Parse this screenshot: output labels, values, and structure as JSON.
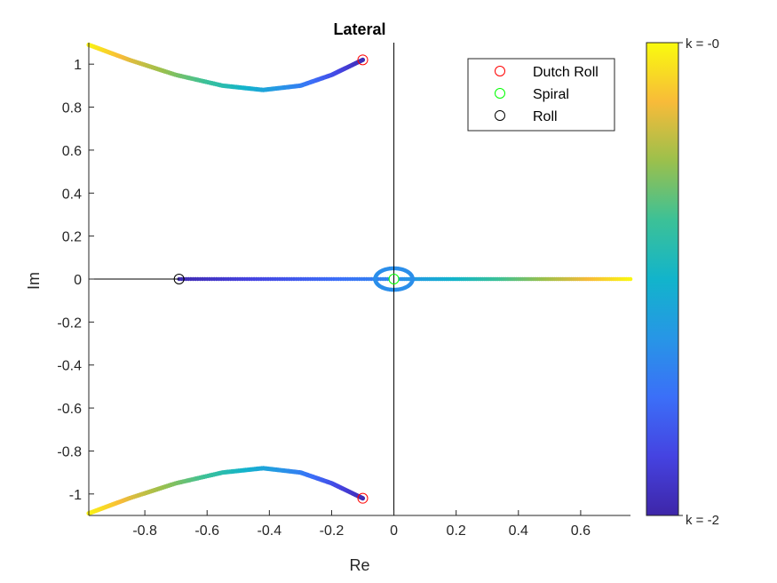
{
  "chart_data": {
    "type": "scatter",
    "title": "Lateral",
    "xlabel": "Re",
    "ylabel": "Im",
    "xlim": [
      -0.98,
      0.76
    ],
    "ylim": [
      -1.1,
      1.1
    ],
    "xticks": [
      -0.8,
      -0.6,
      -0.4,
      -0.2,
      0,
      0.2,
      0.4,
      0.6
    ],
    "xtick_labels": [
      "-0.8",
      "-0.6",
      "-0.4",
      "-0.2",
      "0",
      "0.2",
      "0.4",
      "0.6"
    ],
    "yticks": [
      1,
      0.8,
      0.6,
      0.4,
      0.2,
      0,
      -0.2,
      -0.4,
      -0.6,
      -0.8,
      -1
    ],
    "ytick_labels": [
      "1",
      "0.8",
      "0.6",
      "0.4",
      "0.2",
      "0",
      "-0.2",
      "-0.4",
      "-0.6",
      "-0.8",
      "-1"
    ],
    "grid": false,
    "colormap": "parula",
    "colorbar": {
      "top_label": "k = -0",
      "bottom_label": "k = -2",
      "range": [
        -2,
        0
      ]
    },
    "locus_branches": [
      {
        "branch": "dutch-roll-upper",
        "points": [
          [
            -0.1,
            1.02
          ],
          [
            -0.2,
            0.95
          ],
          [
            -0.3,
            0.9
          ],
          [
            -0.42,
            0.88
          ],
          [
            -0.55,
            0.9
          ],
          [
            -0.7,
            0.95
          ],
          [
            -0.85,
            1.02
          ],
          [
            -0.98,
            1.09
          ]
        ]
      },
      {
        "branch": "dutch-roll-lower",
        "points": [
          [
            -0.1,
            -1.02
          ],
          [
            -0.2,
            -0.95
          ],
          [
            -0.3,
            -0.9
          ],
          [
            -0.42,
            -0.88
          ],
          [
            -0.55,
            -0.9
          ],
          [
            -0.7,
            -0.95
          ],
          [
            -0.85,
            -1.02
          ],
          [
            -0.98,
            -1.09
          ]
        ]
      },
      {
        "branch": "roll-real-axis",
        "points": [
          [
            -0.69,
            0
          ],
          [
            -0.02,
            0
          ]
        ]
      },
      {
        "branch": "spiral-real-axis",
        "points": [
          [
            0.02,
            0
          ],
          [
            0.76,
            0
          ]
        ]
      },
      {
        "branch": "origin-loop",
        "center": [
          0,
          0
        ],
        "rx": 0.06,
        "ry": 0.05
      }
    ],
    "legend": {
      "position": "top-right",
      "entries": [
        {
          "label": "Dutch Roll",
          "color": "#ff0000"
        },
        {
          "label": "Spiral",
          "color": "#00ff00"
        },
        {
          "label": "Roll",
          "color": "#000000"
        }
      ]
    },
    "markers": [
      {
        "series": "Dutch Roll",
        "x": -0.1,
        "y": 1.02
      },
      {
        "series": "Dutch Roll",
        "x": -0.1,
        "y": -1.02
      },
      {
        "series": "Spiral",
        "x": 0.0,
        "y": 0.0
      },
      {
        "series": "Roll",
        "x": -0.69,
        "y": 0.0
      }
    ]
  }
}
